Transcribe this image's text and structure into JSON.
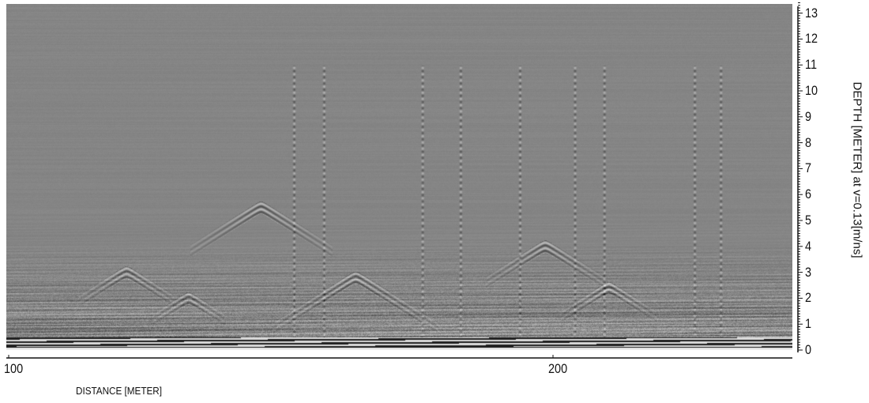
{
  "chart_data": {
    "type": "heatmap",
    "description_type": "radargram",
    "xlabel": "DISTANCE [METER]",
    "ylabel": "DEPTH [METER] at v=0.13[m/ns]",
    "xlim": [
      99.6,
      244
    ],
    "ylim": [
      0,
      13.4
    ],
    "x_ticks": [
      "100",
      "200"
    ],
    "y_ticks": [
      "0",
      "1",
      "2",
      "3",
      "4",
      "5",
      "6",
      "7",
      "8",
      "9",
      "10",
      "11",
      "12",
      "13"
    ],
    "colormap": "grayscale",
    "background_color": "#858585",
    "grid": false
  }
}
